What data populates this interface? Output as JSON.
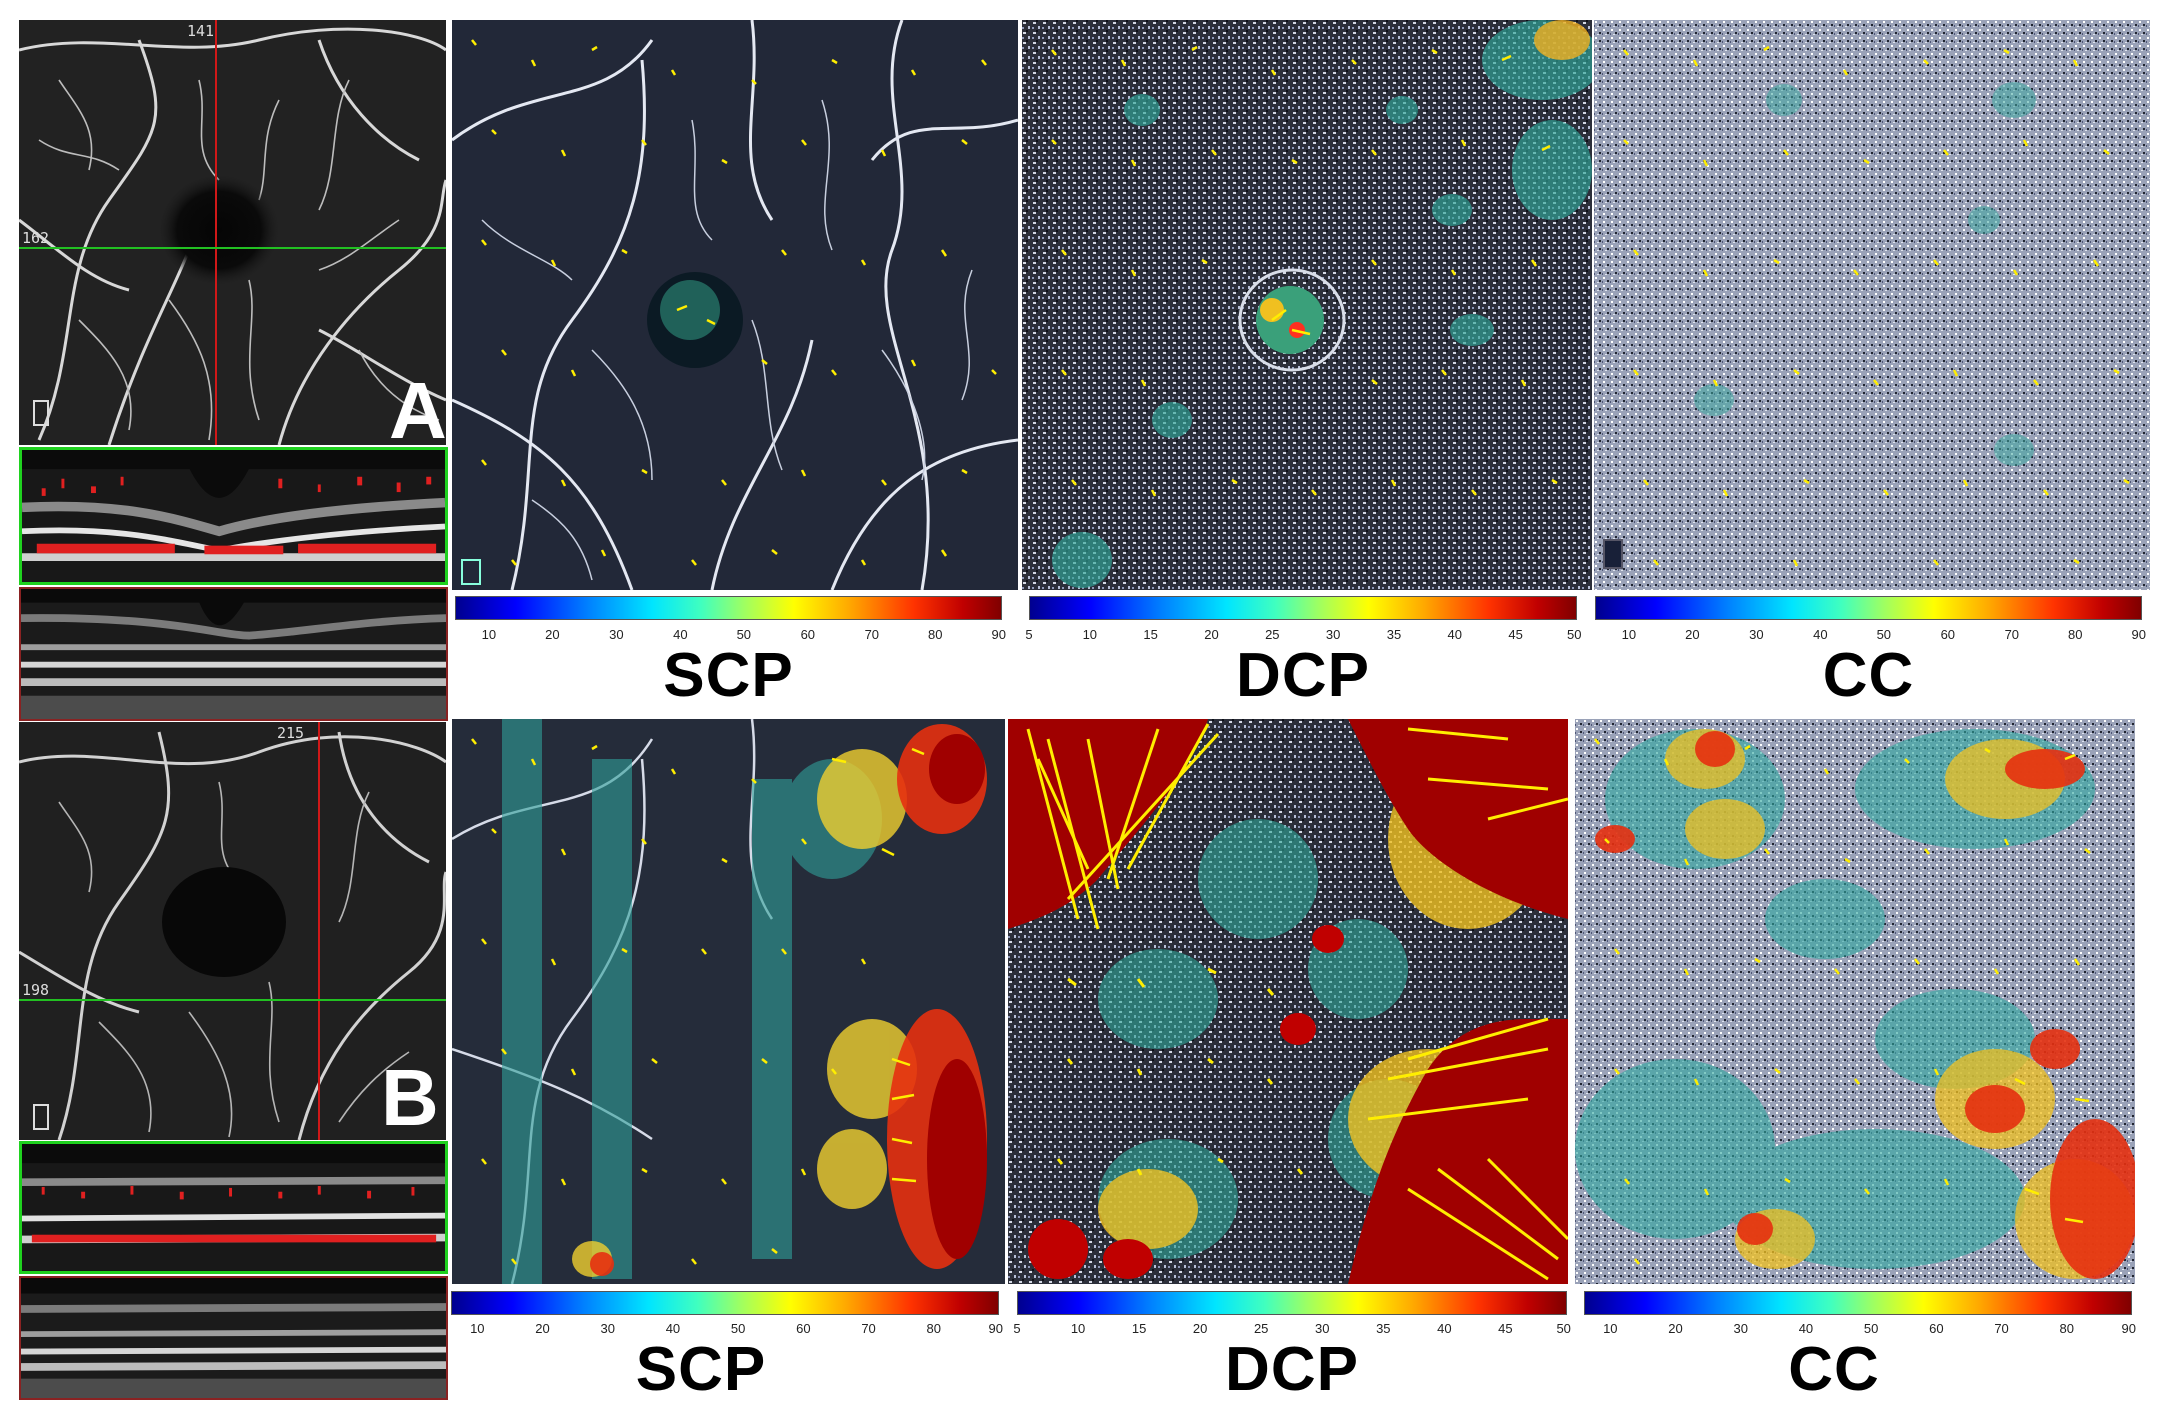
{
  "figure": {
    "panel_a": {
      "letter": "A",
      "crosshair_x_label": "141",
      "crosshair_y_label": "162"
    },
    "panel_b": {
      "letter": "B",
      "crosshair_x_label": "215",
      "crosshair_y_label": "198"
    }
  },
  "row_a": {
    "titles": [
      "SCP",
      "DCP",
      "CC"
    ],
    "scp_ticks": [
      "10",
      "20",
      "30",
      "40",
      "50",
      "60",
      "70",
      "80",
      "90"
    ],
    "dcp_ticks": [
      "5",
      "10",
      "15",
      "20",
      "25",
      "30",
      "35",
      "40",
      "45",
      "50"
    ],
    "cc_ticks": [
      "10",
      "20",
      "30",
      "40",
      "50",
      "60",
      "70",
      "80",
      "90"
    ]
  },
  "row_b": {
    "titles": [
      "SCP",
      "DCP",
      "CC"
    ],
    "scp_ticks": [
      "10",
      "20",
      "30",
      "40",
      "50",
      "60",
      "70",
      "80",
      "90"
    ],
    "dcp_ticks": [
      "5",
      "10",
      "15",
      "20",
      "25",
      "30",
      "35",
      "40",
      "45",
      "50"
    ],
    "cc_ticks": [
      "10",
      "20",
      "30",
      "40",
      "50",
      "60",
      "70",
      "80",
      "90"
    ]
  },
  "colors": {
    "arrow": "#ffee00",
    "green_box": "#1fd11f",
    "red_box": "#8a2222",
    "flow_signal": "#e02020"
  },
  "colorbar_colormap": "jet"
}
